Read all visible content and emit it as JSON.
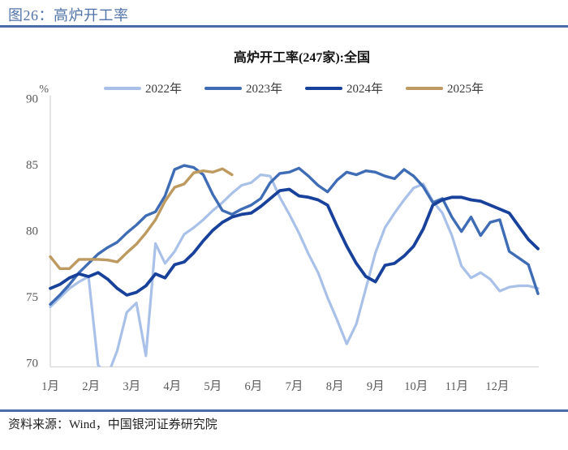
{
  "figure": {
    "title": "图26：高炉开工率"
  },
  "source": {
    "text": "资料来源：Wind，中国银河证券研究院"
  },
  "colors": {
    "header_blue": "#5273a9",
    "rule_blue": "#4a6da8",
    "axis_gray": "#d6d6d6",
    "tick_gray": "#595959"
  },
  "chart_data": {
    "type": "line",
    "title": "高炉开工率(247家):全国",
    "unit_label": "%",
    "x_unit": "week-of-year",
    "x_labels": [
      "1月",
      "2月",
      "3月",
      "4月",
      "5月",
      "6月",
      "7月",
      "8月",
      "9月",
      "10月",
      "11月",
      "12月"
    ],
    "ylim": [
      70,
      90
    ],
    "yticks": [
      70,
      75,
      80,
      85,
      90
    ],
    "grid": false,
    "legend_position": "top",
    "series": [
      {
        "name": "2022年",
        "color": "#a9c1e8",
        "width": 3.2,
        "values": [
          74.2,
          74.9,
          75.6,
          76.1,
          76.5,
          69.8,
          69.0,
          70.9,
          73.8,
          74.5,
          70.5,
          79.0,
          77.5,
          78.4,
          79.7,
          80.2,
          80.8,
          81.5,
          82.1,
          82.8,
          83.4,
          83.6,
          84.2,
          84.1,
          82.5,
          81.2,
          79.8,
          78.2,
          76.8,
          74.9,
          73.2,
          71.4,
          72.9,
          75.6,
          78.3,
          80.2,
          81.3,
          82.3,
          83.2,
          83.5,
          82.2,
          81.3,
          79.6,
          77.3,
          76.4,
          76.8,
          76.3,
          75.4,
          75.7,
          75.8,
          75.8,
          75.6
        ]
      },
      {
        "name": "2023年",
        "color": "#3e6cb5",
        "width": 3.4,
        "values": [
          74.4,
          75.1,
          75.9,
          76.8,
          77.5,
          78.2,
          78.7,
          79.1,
          79.8,
          80.4,
          81.1,
          81.4,
          82.6,
          84.6,
          84.9,
          84.75,
          84.2,
          82.7,
          81.5,
          81.2,
          81.6,
          81.9,
          82.4,
          83.6,
          84.3,
          84.4,
          84.7,
          84.1,
          83.4,
          82.9,
          83.8,
          84.4,
          84.2,
          84.5,
          84.4,
          84.1,
          83.9,
          84.6,
          84.1,
          83.3,
          82.1,
          82.4,
          81.0,
          79.9,
          81.0,
          79.6,
          80.6,
          80.8,
          78.4,
          77.9,
          77.4,
          75.2
        ]
      },
      {
        "name": "2024年",
        "color": "#17419a",
        "width": 3.8,
        "values": [
          75.6,
          75.9,
          76.4,
          76.7,
          76.5,
          76.8,
          76.3,
          75.6,
          75.1,
          75.3,
          75.8,
          76.7,
          76.4,
          77.4,
          77.6,
          78.3,
          79.2,
          80.0,
          80.6,
          81.0,
          81.2,
          81.3,
          81.8,
          82.4,
          83.0,
          83.1,
          82.6,
          82.5,
          82.3,
          81.9,
          80.3,
          78.8,
          77.5,
          76.5,
          76.1,
          77.35,
          77.5,
          78.05,
          78.8,
          80.1,
          81.9,
          82.3,
          82.5,
          82.5,
          82.3,
          82.2,
          81.9,
          81.6,
          81.3,
          80.3,
          79.3,
          78.6
        ]
      },
      {
        "name": "2025年",
        "color": "#bd9a5f",
        "width": 3.4,
        "values": [
          78.0,
          77.1,
          77.1,
          77.8,
          77.8,
          77.8,
          77.75,
          77.6,
          78.3,
          78.95,
          79.8,
          80.8,
          82.2,
          83.25,
          83.5,
          84.35,
          84.5,
          84.4,
          84.65,
          84.2
        ]
      }
    ]
  }
}
